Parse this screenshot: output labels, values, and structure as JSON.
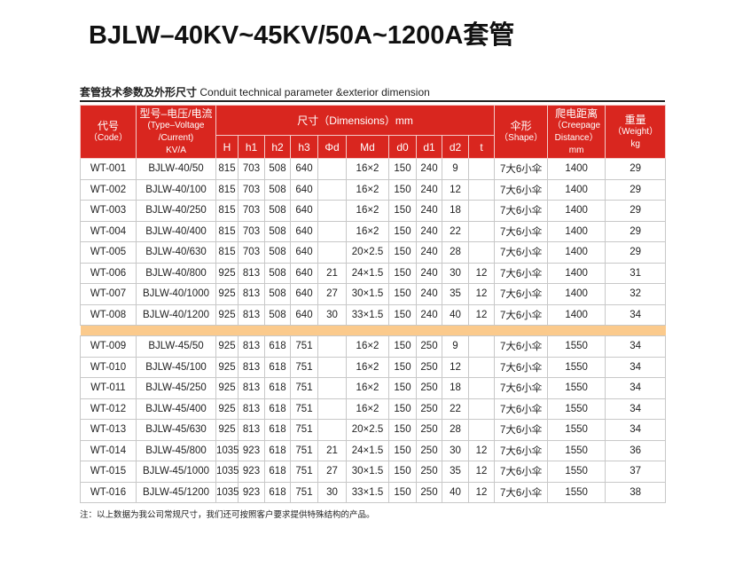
{
  "header": {
    "title": "BJLW–40KV~45KV/50A~1200A套管",
    "subtitle_cn": "套管技术参数及外形尺寸",
    "subtitle_en": "Conduit technical parameter &exterior dimension"
  },
  "table": {
    "top_headers": [
      {
        "lines": [
          "代号",
          "（Code）"
        ]
      },
      {
        "lines": [
          "型号–电压/电流",
          "(Type–Voltage",
          "/Current)",
          "KV/A"
        ]
      },
      {
        "lines": [
          "尺寸（Dimensions）mm"
        ]
      },
      {
        "lines": [
          "伞形",
          "（Shape）"
        ]
      },
      {
        "lines": [
          "爬电距离",
          "（Creepage",
          "Distance）",
          "mm"
        ]
      },
      {
        "lines": [
          "重量",
          "（Weight）",
          "kg"
        ]
      }
    ],
    "sub_headers": [
      "H",
      "h1",
      "h2",
      "h3",
      "Φd",
      "Md",
      "d0",
      "d1",
      "d2",
      "t"
    ],
    "groups": [
      {
        "rows": [
          [
            "WT-001",
            "BJLW-40/50",
            815,
            703,
            508,
            640,
            null,
            "16×2",
            150,
            240,
            9,
            null,
            "7大6小伞",
            1400,
            29
          ],
          [
            "WT-002",
            "BJLW-40/100",
            815,
            703,
            508,
            640,
            null,
            "16×2",
            150,
            240,
            12,
            null,
            "7大6小伞",
            1400,
            29
          ],
          [
            "WT-003",
            "BJLW-40/250",
            815,
            703,
            508,
            640,
            null,
            "16×2",
            150,
            240,
            18,
            null,
            "7大6小伞",
            1400,
            29
          ],
          [
            "WT-004",
            "BJLW-40/400",
            815,
            703,
            508,
            640,
            null,
            "16×2",
            150,
            240,
            22,
            null,
            "7大6小伞",
            1400,
            29
          ],
          [
            "WT-005",
            "BJLW-40/630",
            815,
            703,
            508,
            640,
            null,
            "20×2.5",
            150,
            240,
            28,
            null,
            "7大6小伞",
            1400,
            29
          ],
          [
            "WT-006",
            "BJLW-40/800",
            925,
            813,
            508,
            640,
            21,
            "24×1.5",
            150,
            240,
            30,
            12,
            "7大6小伞",
            1400,
            31
          ],
          [
            "WT-007",
            "BJLW-40/1000",
            925,
            813,
            508,
            640,
            27,
            "30×1.5",
            150,
            240,
            35,
            12,
            "7大6小伞",
            1400,
            32
          ],
          [
            "WT-008",
            "BJLW-40/1200",
            925,
            813,
            508,
            640,
            30,
            "33×1.5",
            150,
            240,
            40,
            12,
            "7大6小伞",
            1400,
            34
          ]
        ]
      },
      {
        "rows": [
          [
            "WT-009",
            "BJLW-45/50",
            925,
            813,
            618,
            751,
            null,
            "16×2",
            150,
            250,
            9,
            null,
            "7大6小伞",
            1550,
            34
          ],
          [
            "WT-010",
            "BJLW-45/100",
            925,
            813,
            618,
            751,
            null,
            "16×2",
            150,
            250,
            12,
            null,
            "7大6小伞",
            1550,
            34
          ],
          [
            "WT-011",
            "BJLW-45/250",
            925,
            813,
            618,
            751,
            null,
            "16×2",
            150,
            250,
            18,
            null,
            "7大6小伞",
            1550,
            34
          ],
          [
            "WT-012",
            "BJLW-45/400",
            925,
            813,
            618,
            751,
            null,
            "16×2",
            150,
            250,
            22,
            null,
            "7大6小伞",
            1550,
            34
          ],
          [
            "WT-013",
            "BJLW-45/630",
            925,
            813,
            618,
            751,
            null,
            "20×2.5",
            150,
            250,
            28,
            null,
            "7大6小伞",
            1550,
            34
          ],
          [
            "WT-014",
            "BJLW-45/800",
            1035,
            923,
            618,
            751,
            21,
            "24×1.5",
            150,
            250,
            30,
            12,
            "7大6小伞",
            1550,
            36
          ],
          [
            "WT-015",
            "BJLW-45/1000",
            1035,
            923,
            618,
            751,
            27,
            "30×1.5",
            150,
            250,
            35,
            12,
            "7大6小伞",
            1550,
            37
          ],
          [
            "WT-016",
            "BJLW-45/1200",
            1035,
            923,
            618,
            751,
            30,
            "33×1.5",
            150,
            250,
            40,
            12,
            "7大6小伞",
            1550,
            38
          ]
        ]
      }
    ]
  },
  "note": "注：以上数据为我公司常规尺寸，我们还可按照客户要求提供特殊结构的产品。"
}
